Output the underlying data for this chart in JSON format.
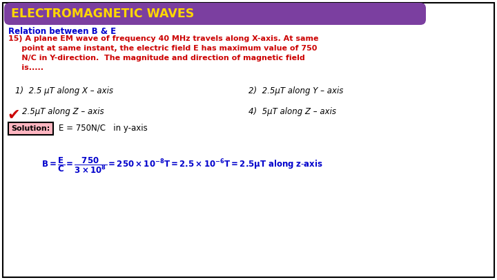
{
  "title": "ELECTROMAGNETIC WAVES",
  "title_bg": "#7B3FA0",
  "title_color": "#FFD700",
  "bg_color": "#FFFFFF",
  "border_color": "#000000",
  "subtitle": "Relation between B & E",
  "subtitle_color": "#0000CC",
  "question_color": "#CC0000",
  "question_lines": [
    "15) A plane EM wave of frequency 40 MHz travels along X-axis. At same",
    "     point at same instant, the electric field E has maximum value of 750",
    "     N/C in Y-direction.  The magnitude and direction of magnetic field",
    "     is....."
  ],
  "option1": "1)  2.5 μT along X – axis",
  "option2": "2)  2.5μT along Y – axis",
  "option3_correct": "2.5μT along Z – axis",
  "option4": "4)  5μT along Z – axis",
  "option_color": "#000000",
  "checkmark_color": "#CC0000",
  "solution_label": "Solution:",
  "solution_box_bg": "#FFB6C1",
  "solution_box_border": "#000000",
  "solution_text": "E = 750N/C   in y-axis",
  "solution_color": "#000000",
  "formula_color": "#0000CC"
}
